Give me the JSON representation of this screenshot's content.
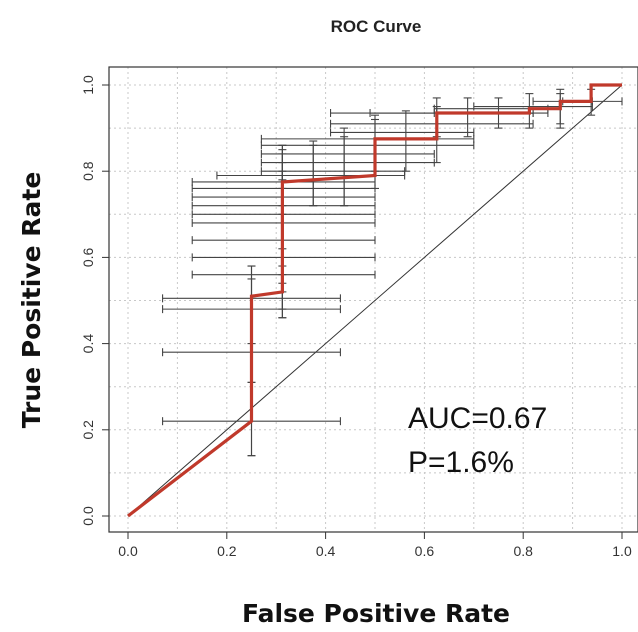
{
  "chart_data": {
    "type": "line",
    "title": "ROC Curve",
    "xlabel": "False Positive Rate",
    "ylabel": "True Positive Rate",
    "xlim": [
      0,
      1
    ],
    "ylim": [
      0,
      1
    ],
    "xticks": [
      "0.0",
      "0.2",
      "0.4",
      "0.6",
      "0.8",
      "1.0"
    ],
    "yticks": [
      "0.0",
      "0.2",
      "0.4",
      "0.6",
      "0.8",
      "1.0"
    ],
    "grid": true,
    "diagonal_reference": true,
    "curve_color": "#c0392b",
    "curve": {
      "x": [
        0.0,
        0.25,
        0.25,
        0.3125,
        0.3125,
        0.5,
        0.5,
        0.625,
        0.625,
        0.8125,
        0.8125,
        0.875,
        0.875,
        0.9375,
        0.9375,
        1.0
      ],
      "y": [
        0.0,
        0.22,
        0.51,
        0.52,
        0.775,
        0.79,
        0.875,
        0.875,
        0.935,
        0.935,
        0.945,
        0.945,
        0.962,
        0.962,
        1.0,
        1.0
      ]
    },
    "error_bars": [
      {
        "x": 0.25,
        "y": 0.22,
        "x_lo": 0.07,
        "x_hi": 0.43,
        "y_lo": 0.14,
        "y_hi": 0.31
      },
      {
        "x": 0.25,
        "y": 0.38,
        "x_lo": 0.07,
        "x_hi": 0.43,
        "y_lo": 0.14,
        "y_hi": 0.58
      },
      {
        "x": 0.25,
        "y": 0.48,
        "x_lo": 0.07,
        "x_hi": 0.43,
        "y_lo": 0.31,
        "y_hi": 0.55
      },
      {
        "x": 0.25,
        "y": 0.505,
        "x_lo": 0.07,
        "x_hi": 0.43,
        "y_lo": 0.4,
        "y_hi": 0.58
      },
      {
        "x": 0.3125,
        "y": 0.56,
        "x_lo": 0.13,
        "x_hi": 0.5,
        "y_lo": 0.46,
        "y_hi": 0.72
      },
      {
        "x": 0.3125,
        "y": 0.6,
        "x_lo": 0.13,
        "x_hi": 0.5,
        "y_lo": 0.46,
        "y_hi": 0.76
      },
      {
        "x": 0.3125,
        "y": 0.64,
        "x_lo": 0.13,
        "x_hi": 0.5,
        "y_lo": 0.48,
        "y_hi": 0.78
      },
      {
        "x": 0.3125,
        "y": 0.68,
        "x_lo": 0.13,
        "x_hi": 0.5,
        "y_lo": 0.52,
        "y_hi": 0.8
      },
      {
        "x": 0.3125,
        "y": 0.7,
        "x_lo": 0.13,
        "x_hi": 0.5,
        "y_lo": 0.54,
        "y_hi": 0.82
      },
      {
        "x": 0.3125,
        "y": 0.72,
        "x_lo": 0.13,
        "x_hi": 0.5,
        "y_lo": 0.56,
        "y_hi": 0.84
      },
      {
        "x": 0.3125,
        "y": 0.74,
        "x_lo": 0.13,
        "x_hi": 0.5,
        "y_lo": 0.58,
        "y_hi": 0.85
      },
      {
        "x": 0.3125,
        "y": 0.76,
        "x_lo": 0.13,
        "x_hi": 0.5,
        "y_lo": 0.62,
        "y_hi": 0.86
      },
      {
        "x": 0.3125,
        "y": 0.775,
        "x_lo": 0.13,
        "x_hi": 0.5,
        "y_lo": 0.7,
        "y_hi": 0.86
      },
      {
        "x": 0.375,
        "y": 0.79,
        "x_lo": 0.18,
        "x_hi": 0.56,
        "y_lo": 0.72,
        "y_hi": 0.87
      },
      {
        "x": 0.375,
        "y": 0.8,
        "x_lo": 0.27,
        "x_hi": 0.56,
        "y_lo": 0.72,
        "y_hi": 0.86
      },
      {
        "x": 0.4375,
        "y": 0.82,
        "x_lo": 0.27,
        "x_hi": 0.62,
        "y_lo": 0.72,
        "y_hi": 0.88
      },
      {
        "x": 0.4375,
        "y": 0.84,
        "x_lo": 0.27,
        "x_hi": 0.62,
        "y_lo": 0.72,
        "y_hi": 0.9
      },
      {
        "x": 0.5,
        "y": 0.86,
        "x_lo": 0.27,
        "x_hi": 0.7,
        "y_lo": 0.76,
        "y_hi": 0.92
      },
      {
        "x": 0.5,
        "y": 0.875,
        "x_lo": 0.27,
        "x_hi": 0.7,
        "y_lo": 0.8,
        "y_hi": 0.93
      },
      {
        "x": 0.5625,
        "y": 0.89,
        "x_lo": 0.41,
        "x_hi": 0.7,
        "y_lo": 0.8,
        "y_hi": 0.94
      },
      {
        "x": 0.625,
        "y": 0.91,
        "x_lo": 0.41,
        "x_hi": 0.82,
        "y_lo": 0.82,
        "y_hi": 0.95
      },
      {
        "x": 0.625,
        "y": 0.935,
        "x_lo": 0.41,
        "x_hi": 0.82,
        "y_lo": 0.88,
        "y_hi": 0.97
      },
      {
        "x": 0.6875,
        "y": 0.935,
        "x_lo": 0.49,
        "x_hi": 0.82,
        "y_lo": 0.88,
        "y_hi": 0.97
      },
      {
        "x": 0.75,
        "y": 0.935,
        "x_lo": 0.62,
        "x_hi": 0.85,
        "y_lo": 0.9,
        "y_hi": 0.97
      },
      {
        "x": 0.8125,
        "y": 0.945,
        "x_lo": 0.62,
        "x_hi": 0.85,
        "y_lo": 0.9,
        "y_hi": 0.98
      },
      {
        "x": 0.875,
        "y": 0.95,
        "x_lo": 0.7,
        "x_hi": 0.94,
        "y_lo": 0.9,
        "y_hi": 0.98
      },
      {
        "x": 0.875,
        "y": 0.962,
        "x_lo": 0.82,
        "x_hi": 0.94,
        "y_lo": 0.91,
        "y_hi": 0.99
      },
      {
        "x": 0.9375,
        "y": 0.962,
        "x_lo": 0.88,
        "x_hi": 1.0,
        "y_lo": 0.93,
        "y_hi": 0.99
      }
    ],
    "annotations": [
      "AUC=0.67",
      "P=1.6%"
    ]
  }
}
